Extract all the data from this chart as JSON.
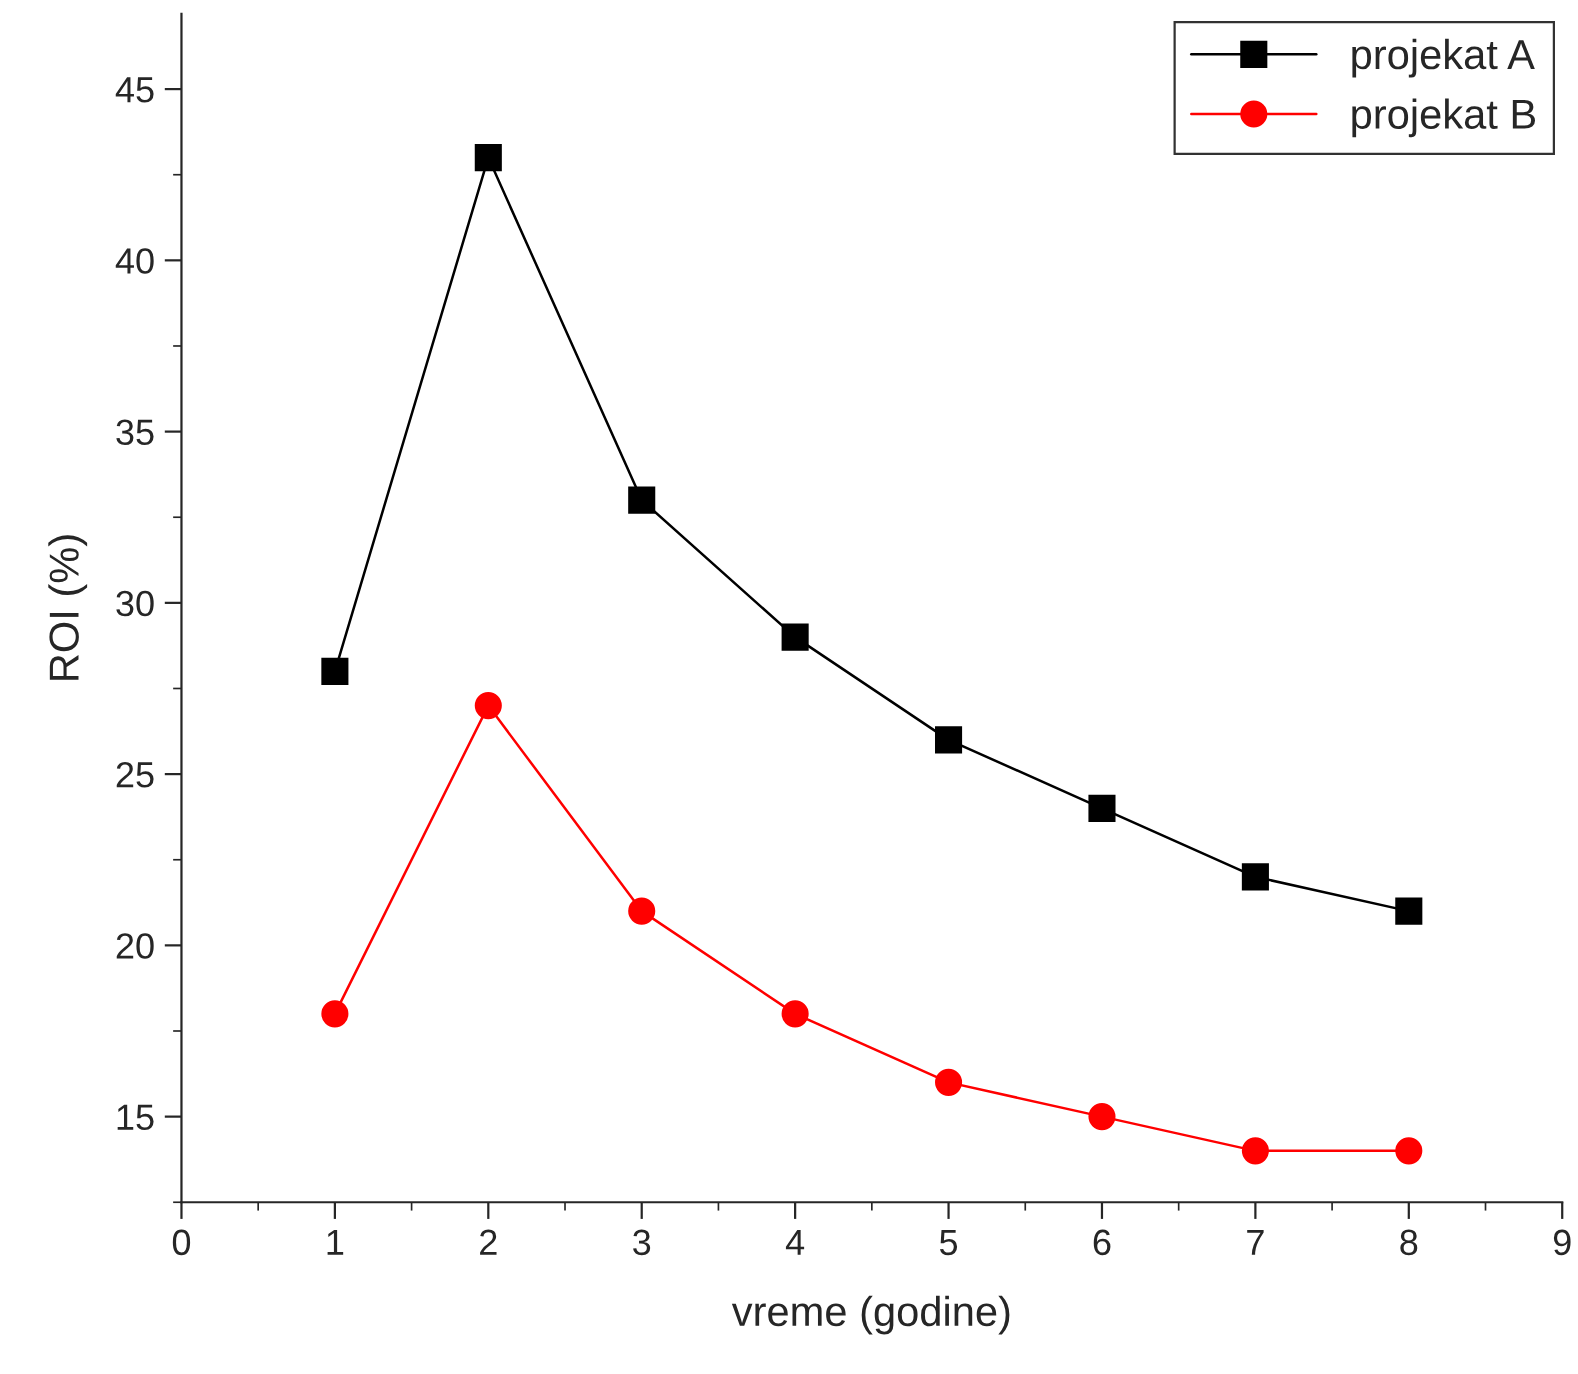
{
  "chart_data": {
    "type": "line",
    "xlabel": "vreme (godine)",
    "ylabel": "ROI (%)",
    "x": [
      1,
      2,
      3,
      4,
      5,
      6,
      7,
      8
    ],
    "series": [
      {
        "name": "projekat A",
        "color": "#000000",
        "marker": "square",
        "values": [
          28,
          43,
          33,
          29,
          26,
          24,
          22,
          21
        ]
      },
      {
        "name": "projekat B",
        "color": "#ff0000",
        "marker": "circle",
        "values": [
          18,
          27,
          21,
          18,
          16,
          15,
          14,
          14
        ]
      }
    ],
    "xlim": [
      0,
      9
    ],
    "xticks": [
      0,
      1,
      2,
      3,
      4,
      5,
      6,
      7,
      8,
      9
    ],
    "ylim": [
      12.5,
      47.2
    ],
    "yticks": [
      15,
      20,
      25,
      30,
      35,
      40,
      45
    ],
    "grid": false,
    "legend": "top right",
    "line_style": "solid"
  }
}
